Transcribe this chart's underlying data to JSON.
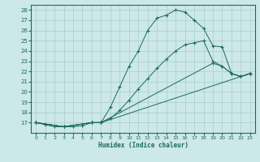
{
  "xlabel": "Humidex (Indice chaleur)",
  "bg_color": "#cce8e8",
  "line_color": "#1a6b5a",
  "grid_color": "#aacccc",
  "xlim": [
    -0.5,
    23.5
  ],
  "ylim": [
    16.0,
    28.5
  ],
  "yticks": [
    17,
    18,
    19,
    20,
    21,
    22,
    23,
    24,
    25,
    26,
    27,
    28
  ],
  "xticks": [
    0,
    1,
    2,
    3,
    4,
    5,
    6,
    7,
    8,
    9,
    10,
    11,
    12,
    13,
    14,
    15,
    16,
    17,
    18,
    19,
    20,
    21,
    22,
    23
  ],
  "line1_x": [
    0,
    1,
    2,
    3,
    4,
    5,
    6,
    7,
    8,
    9,
    10,
    11,
    12,
    13,
    14,
    15,
    16,
    17,
    18,
    19,
    20,
    21,
    22,
    23
  ],
  "line1_y": [
    17.0,
    16.8,
    16.6,
    16.6,
    16.6,
    16.7,
    17.0,
    17.0,
    18.5,
    20.5,
    22.5,
    24.0,
    26.0,
    27.2,
    27.5,
    28.0,
    27.8,
    27.0,
    26.2,
    24.5,
    24.4,
    21.8,
    21.5,
    21.8
  ],
  "line2_x": [
    0,
    3,
    6,
    7,
    8,
    9,
    10,
    11,
    12,
    13,
    14,
    15,
    16,
    17,
    18,
    19,
    20,
    21,
    22,
    23
  ],
  "line2_y": [
    17.0,
    16.6,
    17.0,
    17.0,
    17.4,
    18.2,
    19.2,
    20.3,
    21.3,
    22.3,
    23.2,
    24.0,
    24.6,
    24.8,
    25.0,
    23.0,
    22.5,
    21.8,
    21.5,
    21.8
  ],
  "line3_x": [
    0,
    3,
    6,
    7,
    23
  ],
  "line3_y": [
    17.0,
    16.6,
    17.0,
    17.0,
    21.8
  ],
  "line4_x": [
    0,
    3,
    6,
    7,
    19,
    20,
    21,
    22,
    23
  ],
  "line4_y": [
    17.0,
    16.6,
    17.0,
    17.0,
    22.8,
    22.5,
    21.8,
    21.5,
    21.8
  ]
}
